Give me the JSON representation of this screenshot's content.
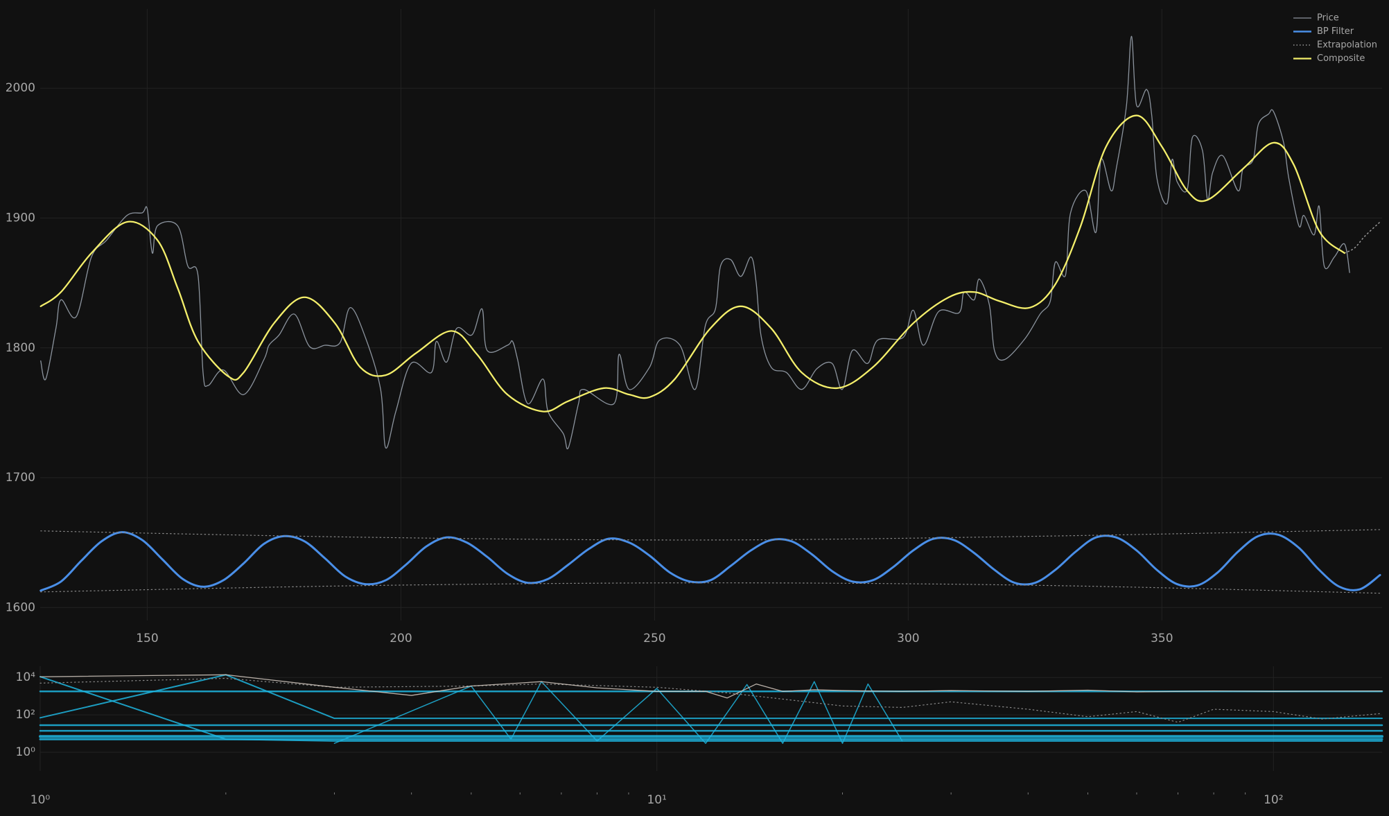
{
  "chart_data": [
    {
      "type": "line",
      "xlim": [
        128.9,
        393.4
      ],
      "ylim": [
        1590,
        2061
      ],
      "xticks": [
        150,
        200,
        250,
        300,
        350
      ],
      "yticks": [
        1600,
        1700,
        1800,
        1900,
        2000
      ],
      "grid": true,
      "legend": "upper right",
      "series": [
        {
          "name": "Price",
          "color": "#8c949e",
          "width": 1.3,
          "x": [
            129,
            130,
            132,
            133,
            136,
            139,
            142,
            146,
            149,
            150,
            151,
            152,
            156,
            158,
            160,
            161,
            162,
            165,
            169,
            173,
            174,
            176,
            179,
            182,
            185,
            188,
            190,
            193,
            196,
            197,
            199,
            202,
            206,
            207,
            209,
            211,
            214,
            216,
            217,
            221,
            222,
            223,
            225,
            228,
            229,
            232,
            233,
            235,
            236,
            242,
            243,
            245,
            249,
            251,
            255,
            258,
            260,
            262,
            263,
            265,
            267,
            269,
            270,
            271,
            273,
            276,
            279,
            282,
            285,
            287,
            289,
            292,
            294,
            299,
            301,
            303,
            306,
            310,
            311,
            313,
            314,
            316,
            317,
            319,
            323,
            326,
            328,
            329,
            331,
            332,
            335,
            337,
            338,
            340,
            341,
            343,
            344,
            345,
            347,
            348,
            349,
            351,
            352,
            353,
            355,
            356,
            358,
            359,
            360,
            362,
            365,
            366,
            368,
            369,
            371,
            372,
            374,
            375,
            377,
            378,
            380,
            381,
            382,
            384,
            386,
            387
          ],
          "values": [
            1790,
            1776,
            1815,
            1837,
            1824,
            1870,
            1883,
            1902,
            1904,
            1907,
            1873,
            1894,
            1894,
            1863,
            1856,
            1781,
            1771,
            1783,
            1764,
            1791,
            1802,
            1810,
            1826,
            1801,
            1802,
            1804,
            1831,
            1808,
            1768,
            1723,
            1751,
            1788,
            1781,
            1805,
            1789,
            1815,
            1810,
            1830,
            1798,
            1802,
            1805,
            1791,
            1757,
            1776,
            1751,
            1734,
            1723,
            1757,
            1768,
            1757,
            1795,
            1768,
            1785,
            1806,
            1802,
            1768,
            1817,
            1830,
            1863,
            1868,
            1855,
            1870,
            1851,
            1809,
            1785,
            1781,
            1768,
            1784,
            1788,
            1768,
            1798,
            1788,
            1806,
            1808,
            1829,
            1802,
            1828,
            1827,
            1843,
            1837,
            1853,
            1833,
            1798,
            1791,
            1807,
            1826,
            1836,
            1866,
            1856,
            1904,
            1921,
            1889,
            1945,
            1921,
            1938,
            1986,
            2040,
            1987,
            1999,
            1979,
            1931,
            1911,
            1945,
            1928,
            1922,
            1962,
            1952,
            1914,
            1935,
            1948,
            1921,
            1938,
            1945,
            1972,
            1980,
            1982,
            1958,
            1931,
            1894,
            1902,
            1887,
            1909,
            1863,
            1870,
            1880,
            1858
          ]
        },
        {
          "name": "BP Filter",
          "color": "#4a8fe8",
          "width": 3,
          "x": [
            129,
            133,
            137,
            141,
            145,
            149,
            153,
            157,
            161,
            165,
            169,
            173,
            177,
            181,
            185,
            189,
            193,
            197,
            201,
            205,
            209,
            213,
            217,
            221,
            225,
            229,
            233,
            237,
            241,
            245,
            249,
            253,
            257,
            261,
            265,
            269,
            273,
            277,
            281,
            285,
            289,
            293,
            297,
            301,
            305,
            309,
            313,
            317,
            321,
            325,
            329,
            333,
            337,
            341,
            345,
            349,
            353,
            357,
            361,
            365,
            369,
            373,
            377,
            381,
            385,
            389,
            393
          ],
          "values": [
            1613,
            1620,
            1636,
            1651,
            1658,
            1652,
            1637,
            1622,
            1616,
            1621,
            1634,
            1649,
            1655,
            1651,
            1638,
            1624,
            1618,
            1621,
            1633,
            1647,
            1654,
            1650,
            1639,
            1626,
            1619,
            1622,
            1633,
            1645,
            1653,
            1650,
            1640,
            1627,
            1620,
            1621,
            1632,
            1644,
            1652,
            1651,
            1641,
            1628,
            1620,
            1621,
            1631,
            1644,
            1653,
            1652,
            1642,
            1629,
            1619,
            1619,
            1629,
            1643,
            1654,
            1654,
            1644,
            1629,
            1618,
            1617,
            1627,
            1643,
            1655,
            1656,
            1646,
            1629,
            1616,
            1614,
            1625
          ]
        },
        {
          "name": "Extrapolation",
          "color": "#9a9a9a",
          "width": 1.5,
          "dash": "dotted",
          "x": [
            386,
            388,
            390,
            393
          ],
          "values": [
            1873,
            1877,
            1886,
            1897
          ]
        },
        {
          "name": "Composite",
          "color": "#f4ef6b",
          "width": 2.3,
          "x": [
            129,
            133,
            139,
            146,
            152,
            156,
            160,
            166,
            169,
            175,
            181,
            187,
            192,
            197,
            203,
            210,
            215,
            221,
            228,
            233,
            240,
            245,
            249,
            254,
            261,
            267,
            273,
            279,
            286,
            293,
            301,
            308,
            313,
            318,
            324,
            329,
            334,
            339,
            345,
            350,
            355,
            359,
            366,
            372,
            376,
            381,
            386
          ],
          "values": [
            1832,
            1843,
            1873,
            1897,
            1883,
            1846,
            1805,
            1778,
            1781,
            1819,
            1839,
            1819,
            1785,
            1779,
            1796,
            1813,
            1795,
            1764,
            1751,
            1759,
            1769,
            1764,
            1762,
            1776,
            1815,
            1832,
            1815,
            1781,
            1769,
            1785,
            1819,
            1839,
            1843,
            1836,
            1831,
            1849,
            1894,
            1955,
            1979,
            1955,
            1921,
            1914,
            1938,
            1958,
            1941,
            1890,
            1873
          ]
        },
        {
          "color": "#8a8a8a",
          "width": 1.2,
          "dash": "dotted",
          "x": [
            129,
            195,
            261,
            327,
            393
          ],
          "values": [
            1659,
            1654,
            1652,
            1655,
            1660
          ]
        },
        {
          "color": "#8a8a8a",
          "width": 1.2,
          "dash": "dotted",
          "x": [
            129,
            195,
            261,
            327,
            393
          ],
          "values": [
            1612,
            1617,
            1619,
            1617,
            1611
          ]
        }
      ]
    },
    {
      "type": "line",
      "xscale": "log",
      "yscale": "log",
      "xlim": [
        1,
        150
      ],
      "ylim": [
        0.1,
        40000
      ],
      "grid": true,
      "xticks": [
        {
          "value": 1,
          "label": "10⁰"
        },
        {
          "value": 10,
          "label": "10¹"
        },
        {
          "value": 100,
          "label": "10²"
        }
      ],
      "xminorticks": [
        2,
        3,
        4,
        5,
        6,
        7,
        8,
        9,
        20,
        30,
        40,
        50,
        60,
        70,
        80,
        90
      ],
      "yticks": [
        {
          "value": 1,
          "label": "10⁰"
        },
        {
          "value": 100,
          "label": "10²"
        },
        {
          "value": 10000,
          "label": "10⁴"
        }
      ],
      "series": [
        {
          "color": "#1fb6e0",
          "width": 4,
          "x": [
            1,
            150
          ],
          "values": [
            7,
            7
          ]
        },
        {
          "color": "#1fb6e0",
          "width": 3,
          "x": [
            1,
            150
          ],
          "values": [
            5,
            5
          ]
        },
        {
          "color": "#1fb6e0",
          "width": 2.5,
          "x": [
            1,
            150
          ],
          "values": [
            14,
            14
          ]
        },
        {
          "color": "#1fb6e0",
          "width": 2.5,
          "x": [
            1,
            150
          ],
          "values": [
            28,
            28
          ]
        },
        {
          "color": "#1fb6e0",
          "width": 2.5,
          "x": [
            1,
            150
          ],
          "values": [
            1800,
            1800
          ]
        },
        {
          "color": "#1fb6e0",
          "width": 2,
          "x": [
            1,
            2,
            3,
            150
          ],
          "values": [
            70,
            14000,
            65,
            65
          ]
        },
        {
          "color": "#1fb6e0",
          "width": 2,
          "x": [
            1,
            2,
            3,
            150
          ],
          "values": [
            11000,
            5,
            4,
            4
          ]
        },
        {
          "color": "#1fb6e0",
          "width": 1.5,
          "x": [
            3,
            5,
            5.8,
            6.5,
            8,
            10,
            12,
            14,
            16,
            18,
            20,
            22,
            25
          ],
          "values": [
            3,
            3500,
            5,
            6000,
            4,
            2600,
            3,
            4200,
            3,
            6000,
            3,
            4500,
            4
          ]
        },
        {
          "color": "#8a8a8a",
          "width": 1.2,
          "dash": "dotted",
          "x": [
            1,
            2,
            3,
            5,
            6.5,
            10,
            13,
            16,
            20,
            25,
            30,
            40,
            50,
            60,
            70,
            80,
            100,
            120,
            150
          ],
          "values": [
            5000,
            9000,
            3000,
            3500,
            4500,
            3000,
            1500,
            700,
            300,
            250,
            500,
            200,
            80,
            150,
            40,
            200,
            150,
            60,
            120
          ]
        },
        {
          "color": "#d9cfc6",
          "width": 1.3,
          "x": [
            1,
            2,
            3,
            4,
            5,
            6.5,
            8,
            10,
            12,
            13,
            14.5,
            16,
            18,
            20,
            22,
            25,
            30,
            40,
            50,
            60,
            80,
            100,
            150
          ],
          "values": [
            11000,
            14000,
            3000,
            1100,
            3500,
            6000,
            2800,
            1800,
            1800,
            800,
            4500,
            1800,
            2200,
            2000,
            1900,
            1800,
            2000,
            1800,
            2100,
            1700,
            1900,
            1800,
            1900
          ]
        }
      ]
    }
  ]
}
